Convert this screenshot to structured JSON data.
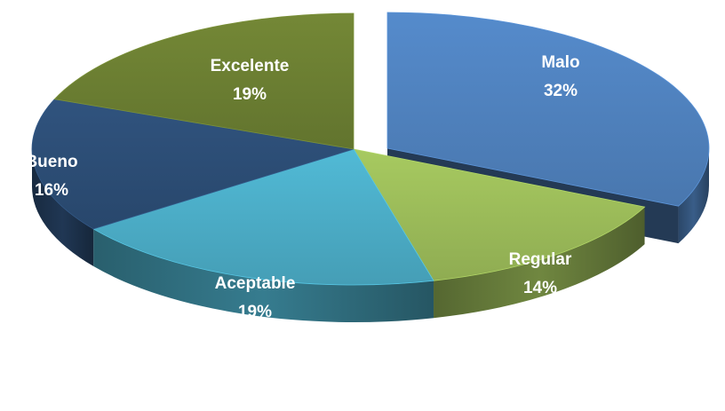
{
  "chart_data": {
    "type": "pie",
    "style": "3d-exploded",
    "exploded_slice": "Malo",
    "slices": [
      {
        "label": "Malo",
        "value": 32,
        "percent_label": "32%",
        "color": "#4F81BD"
      },
      {
        "label": "Regular",
        "value": 14,
        "percent_label": "14%",
        "color": "#9BBB59"
      },
      {
        "label": "Aceptable",
        "value": 19,
        "percent_label": "19%",
        "color": "#4BACC6"
      },
      {
        "label": "Bueno",
        "value": 16,
        "percent_label": "16%",
        "color": "#2C4D75"
      },
      {
        "label": "Excelente",
        "value": 19,
        "percent_label": "19%",
        "color": "#6B7E32"
      }
    ]
  }
}
